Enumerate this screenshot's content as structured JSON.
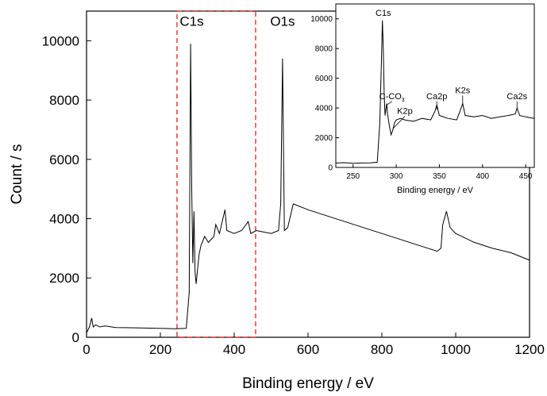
{
  "chart_data": [
    {
      "type": "line",
      "xlabel": "Binding energy / eV",
      "ylabel": "Count / s",
      "xlim": [
        0,
        1200
      ],
      "ylim": [
        0,
        11000
      ],
      "x_ticks": [
        0,
        200,
        400,
        600,
        800,
        1000,
        1200
      ],
      "y_ticks": [
        0,
        2000,
        4000,
        6000,
        8000,
        10000
      ],
      "grid": false,
      "highlight_region": {
        "x": [
          245,
          458
        ],
        "y": [
          0,
          11000
        ],
        "style": "dashed",
        "color": "#e8302a"
      },
      "annotations": [
        {
          "text": "C1s",
          "x": 285,
          "y": 10500
        },
        {
          "text": "O1s",
          "x": 531,
          "y": 10500
        }
      ],
      "series": [
        {
          "x": [
            0,
            8,
            14,
            18,
            25,
            35,
            50,
            80,
            120,
            160,
            200,
            240,
            270,
            278,
            282,
            285,
            288,
            291,
            294,
            297,
            300,
            305,
            310,
            320,
            330,
            345,
            350,
            360,
            375,
            380,
            400,
            420,
            438,
            445,
            460,
            480,
            500,
            520,
            526,
            531,
            536,
            545,
            560,
            600,
            650,
            700,
            750,
            800,
            850,
            900,
            950,
            960,
            965,
            975,
            985,
            1000,
            1050,
            1100,
            1150,
            1200
          ],
          "y": [
            150,
            350,
            650,
            350,
            420,
            350,
            380,
            330,
            320,
            310,
            300,
            290,
            300,
            1500,
            9900,
            5000,
            2500,
            4250,
            2200,
            1800,
            2200,
            2800,
            3100,
            3400,
            3200,
            3400,
            3800,
            3500,
            4300,
            3600,
            3500,
            3600,
            3900,
            3500,
            3600,
            3550,
            3500,
            3600,
            4500,
            9400,
            3600,
            3700,
            4500,
            4300,
            4100,
            3900,
            3700,
            3500,
            3300,
            3100,
            2900,
            3000,
            3800,
            4250,
            3700,
            3500,
            3200,
            3000,
            2850,
            2600
          ]
        }
      ]
    },
    {
      "type": "line",
      "xlabel": "Binding energy / eV",
      "ylabel": "",
      "xlim": [
        230,
        460
      ],
      "ylim": [
        0,
        11000
      ],
      "x_ticks": [
        250,
        300,
        350,
        400,
        450
      ],
      "y_ticks": [
        0,
        2000,
        4000,
        6000,
        8000,
        10000
      ],
      "grid": false,
      "annotations": [
        {
          "text": "C1s",
          "x": 285,
          "y": 10200
        },
        {
          "text": "C-CO",
          "subscript": "3",
          "x": 295,
          "y": 4600,
          "arrow_to": [
            289,
            4200
          ]
        },
        {
          "text": "K2p",
          "x": 310,
          "y": 3600,
          "arrow_to": [
            296,
            2600
          ]
        },
        {
          "text": "Ca2p",
          "x": 347,
          "y": 4600,
          "arrow_to": [
            347,
            3900
          ]
        },
        {
          "text": "K2s",
          "x": 377,
          "y": 5000,
          "arrow_to": [
            377,
            4300
          ]
        },
        {
          "text": "Ca2s",
          "x": 440,
          "y": 4600,
          "arrow_to": [
            440,
            3900
          ]
        }
      ],
      "series": [
        {
          "x": [
            230,
            240,
            250,
            260,
            270,
            278,
            281,
            283,
            284,
            285,
            286,
            287,
            289,
            290,
            292,
            294,
            296,
            298,
            300,
            305,
            310,
            320,
            330,
            340,
            345,
            347,
            350,
            360,
            370,
            374,
            377,
            380,
            390,
            400,
            410,
            420,
            430,
            438,
            440,
            443,
            450,
            460
          ],
          "y": [
            300,
            320,
            280,
            300,
            310,
            350,
            3000,
            7500,
            9900,
            8000,
            5000,
            3500,
            4300,
            3600,
            2800,
            2200,
            2500,
            3000,
            3200,
            3300,
            3200,
            3100,
            3300,
            3200,
            3800,
            4200,
            3500,
            3300,
            3200,
            3800,
            4300,
            3500,
            3400,
            3500,
            3300,
            3400,
            3500,
            3600,
            4000,
            3500,
            3400,
            3300
          ]
        }
      ]
    }
  ]
}
